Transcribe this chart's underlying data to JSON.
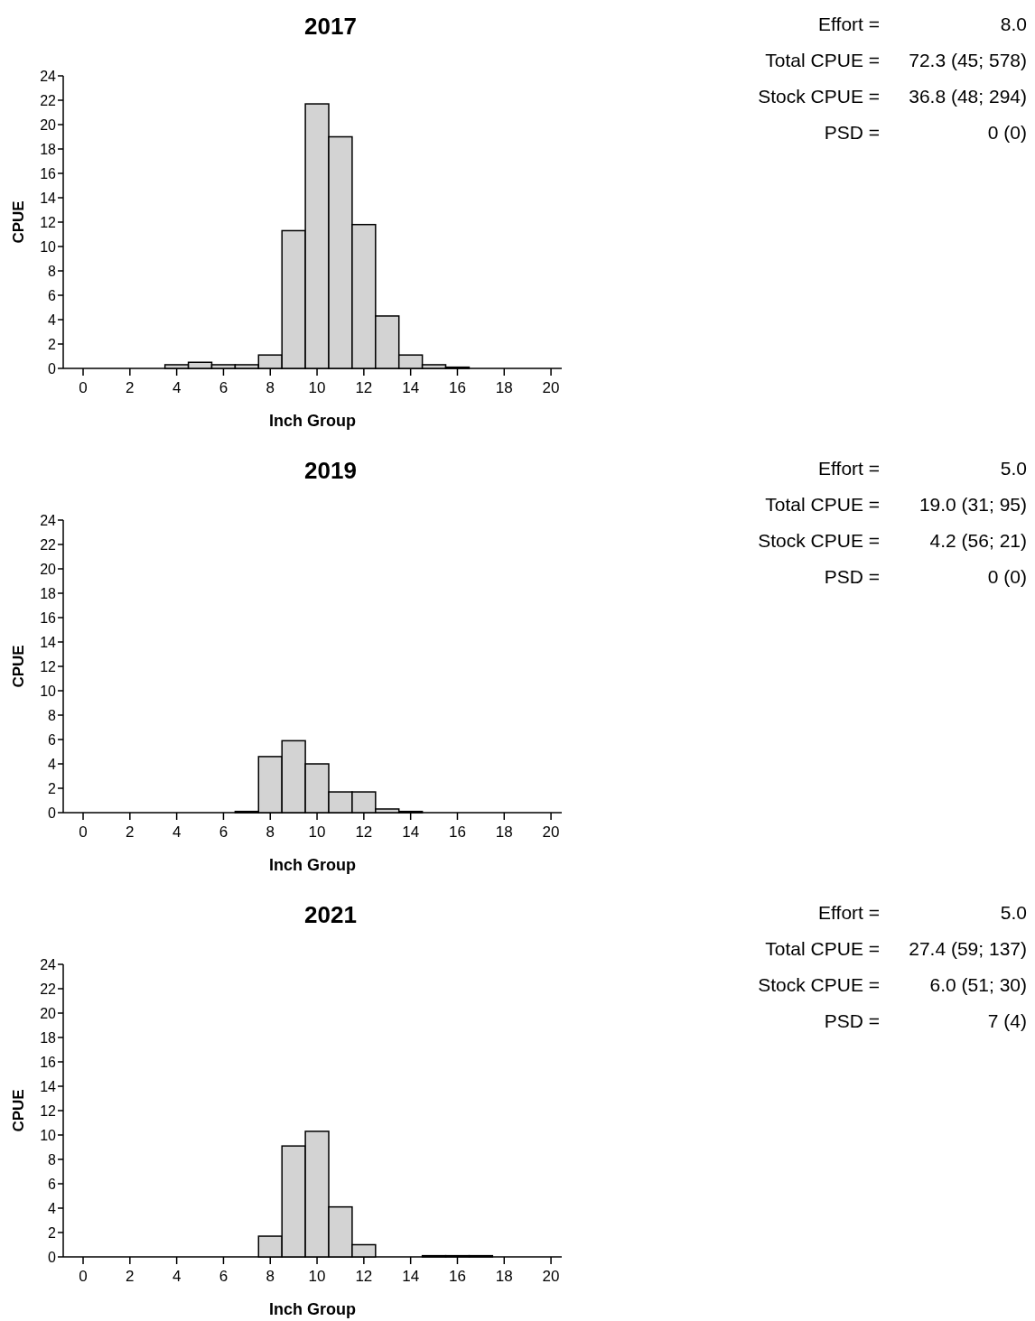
{
  "chart_data": [
    {
      "type": "histogram",
      "title": "2017",
      "xlabel": "Inch Group",
      "ylabel": "CPUE",
      "color": "#d3d3d3",
      "bins": [
        3.5,
        4.5,
        5.5,
        6.5,
        7.5,
        8.5,
        9.5,
        10.5,
        11.5,
        12.5,
        13.5,
        14.5,
        15.5,
        16.5
      ],
      "values": [
        0.3,
        0.5,
        0.3,
        0.3,
        1.1,
        11.3,
        21.7,
        19.0,
        11.8,
        4.3,
        1.1,
        0.3,
        0.1
      ],
      "xlim": [
        -0.85,
        20.46
      ],
      "xticks": [
        0,
        2,
        4,
        6,
        8,
        10,
        12,
        14,
        16,
        18,
        20
      ],
      "ylim": [
        0,
        24
      ],
      "yticks": [
        0,
        2,
        4,
        6,
        8,
        10,
        12,
        14,
        16,
        18,
        20,
        22,
        24
      ]
    },
    {
      "type": "other",
      "annotations": [
        "Effort =",
        "8.0",
        "Total CPUE =",
        "72.3 (45; 578)",
        "Stock CPUE =",
        "36.8 (48; 294)",
        "PSD =",
        "0 (0)"
      ]
    },
    {
      "type": "histogram",
      "title": "2019",
      "xlabel": "Inch Group",
      "ylabel": "CPUE",
      "color": "#d3d3d3",
      "bins": [
        6.5,
        7.5,
        8.5,
        9.5,
        10.5,
        11.5,
        12.5,
        13.5,
        14.5
      ],
      "values": [
        0.1,
        4.6,
        5.9,
        4.0,
        1.7,
        1.7,
        0.3,
        0.1
      ],
      "xlim": [
        -0.85,
        20.46
      ],
      "xticks": [
        0,
        2,
        4,
        6,
        8,
        10,
        12,
        14,
        16,
        18,
        20
      ],
      "ylim": [
        0,
        24
      ],
      "yticks": [
        0,
        2,
        4,
        6,
        8,
        10,
        12,
        14,
        16,
        18,
        20,
        22,
        24
      ]
    },
    {
      "type": "other",
      "annotations": [
        "Effort =",
        "5.0",
        "Total CPUE =",
        "19.0 (31; 95)",
        "Stock CPUE =",
        "4.2 (56; 21)",
        "PSD =",
        "0 (0)"
      ]
    },
    {
      "type": "histogram",
      "title": "2021",
      "xlabel": "Inch Group",
      "ylabel": "CPUE",
      "color": "#d3d3d3",
      "bins": [
        7.5,
        8.5,
        9.5,
        10.5,
        11.5,
        12.5,
        13.5,
        14.5,
        15.5,
        16.5,
        17.5
      ],
      "values": [
        1.7,
        9.1,
        10.3,
        4.1,
        1.0,
        0,
        0,
        0.1,
        0.1,
        0.1
      ],
      "xlim": [
        -0.85,
        20.46
      ],
      "xticks": [
        0,
        2,
        4,
        6,
        8,
        10,
        12,
        14,
        16,
        18,
        20
      ],
      "ylim": [
        0,
        24
      ],
      "yticks": [
        0,
        2,
        4,
        6,
        8,
        10,
        12,
        14,
        16,
        18,
        20,
        22,
        24
      ]
    },
    {
      "type": "other",
      "annotations": [
        "Effort =",
        "5.0",
        "Total CPUE =",
        "27.4 (59; 137)",
        "Stock CPUE =",
        "6.0 (51; 30)",
        "PSD =",
        "7 (4)"
      ]
    }
  ]
}
